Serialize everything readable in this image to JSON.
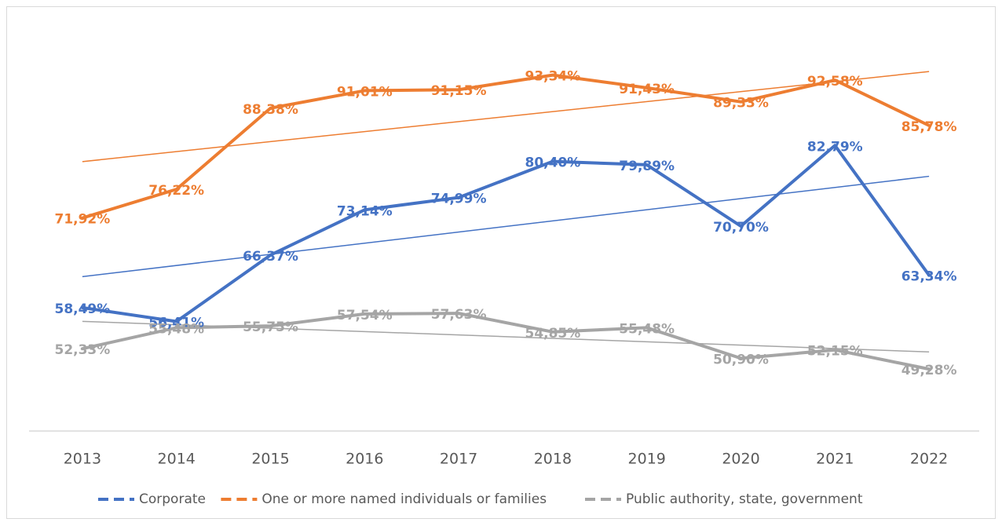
{
  "chart_data": {
    "type": "line",
    "categories": [
      "2013",
      "2014",
      "2015",
      "2016",
      "2017",
      "2018",
      "2019",
      "2020",
      "2021",
      "2022"
    ],
    "series": [
      {
        "name": "Corporate",
        "color": "#4472c4",
        "values": [
          58.49,
          56.41,
          66.37,
          73.14,
          74.99,
          80.4,
          79.89,
          70.7,
          82.79,
          63.34
        ],
        "value_labels": [
          "58,49%",
          "56,41%",
          "66,37%",
          "73,14%",
          "74,99%",
          "80,40%",
          "79,89%",
          "70,70%",
          "82,79%",
          "63,34%"
        ]
      },
      {
        "name": "One or more named individuals or families",
        "color": "#ed7d31",
        "values": [
          71.92,
          76.22,
          88.38,
          91.01,
          91.15,
          93.34,
          91.43,
          89.33,
          92.58,
          85.78
        ],
        "value_labels": [
          "71,92%",
          "76,22%",
          "88,38%",
          "91,01%",
          "91,15%",
          "93,34%",
          "91,43%",
          "89,33%",
          "92,58%",
          "85,78%"
        ]
      },
      {
        "name": "Public authority, state, government",
        "color": "#a5a5a5",
        "values": [
          52.33,
          55.48,
          55.75,
          57.54,
          57.63,
          54.85,
          55.48,
          50.9,
          52.15,
          49.28
        ],
        "value_labels": [
          "52,33%",
          "55,48%",
          "55,75%",
          "57,54%",
          "57,63%",
          "54,85%",
          "55,48%",
          "50,90%",
          "52,15%",
          "49,28%"
        ]
      }
    ],
    "ylim": [
      40,
      100
    ],
    "trendline": true,
    "legend": "bottom"
  }
}
